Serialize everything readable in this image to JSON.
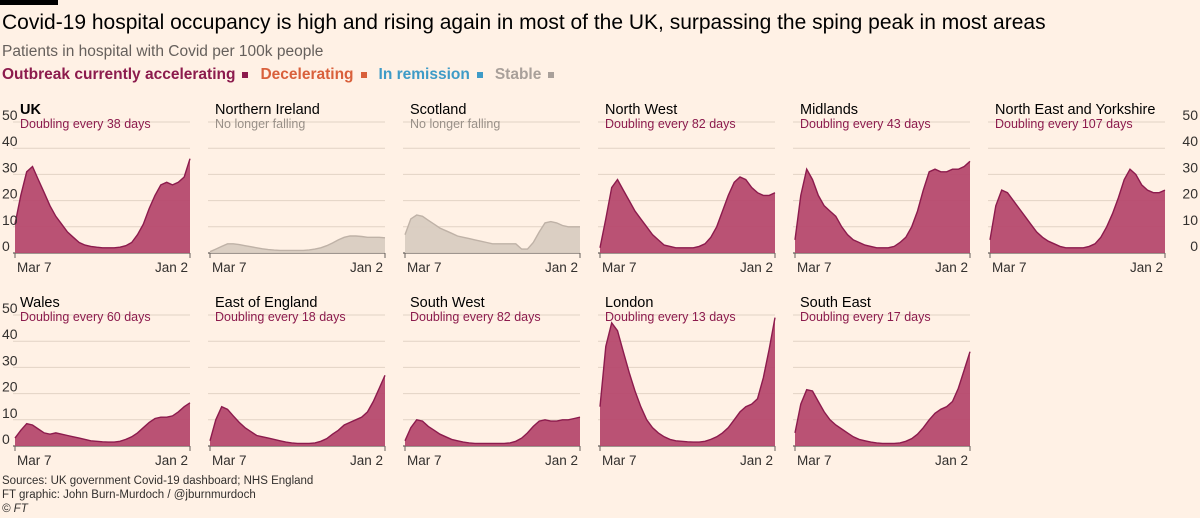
{
  "header": {
    "title": "Covid-19 hospital occupancy is high and rising again in most of the UK, surpassing the sping peak in most areas",
    "subtitle": "Patients in hospital with Covid per 100k people"
  },
  "legend": [
    {
      "label": "Outbreak currently accelerating",
      "color": "#8c1b4d"
    },
    {
      "label": "Decelerating",
      "color": "#d9603b"
    },
    {
      "label": "In remission",
      "color": "#3e9bc7"
    },
    {
      "label": "Stable",
      "color": "#a9a09a"
    }
  ],
  "colors": {
    "accelerating_fill": "#b6496e",
    "accelerating_stroke": "#8c1b4d",
    "stable_fill": "#d9ccc1",
    "stable_stroke": "#bfb2a7",
    "stable_text": "#999088",
    "grid": "#e2d3c5",
    "axis_text": "#33302e"
  },
  "chart_data": {
    "type": "area",
    "x_start": "Mar 7",
    "x_end": "Jan 2",
    "x_tick_labels": [
      "Mar 7",
      "Jan 2"
    ],
    "y_ticks": [
      0,
      10,
      20,
      30,
      40,
      50
    ],
    "ylim": [
      0,
      50
    ],
    "grid": true,
    "panels": [
      {
        "name": "UK",
        "status": "accelerating",
        "note": "Doubling every 38 days",
        "values": [
          11,
          22,
          31,
          33,
          28,
          23,
          18,
          14,
          11,
          8,
          6,
          4,
          3,
          2.5,
          2.2,
          2,
          2,
          2,
          2.2,
          2.8,
          4,
          7,
          11,
          17,
          22,
          26,
          27,
          26,
          27,
          29,
          36
        ]
      },
      {
        "name": "Northern Ireland",
        "status": "stable",
        "note": "No longer falling",
        "values": [
          0.5,
          1.5,
          2.5,
          3.5,
          3.5,
          3.2,
          2.8,
          2.4,
          2,
          1.6,
          1.3,
          1.1,
          1,
          1,
          1,
          1,
          1,
          1.2,
          1.5,
          2,
          2.8,
          3.8,
          5,
          6,
          6.5,
          6.5,
          6.3,
          6,
          6,
          6,
          5.8
        ]
      },
      {
        "name": "Scotland",
        "status": "stable",
        "note": "No longer falling",
        "values": [
          7,
          13,
          14.5,
          14,
          12.5,
          11,
          9.5,
          8.5,
          7.5,
          6.5,
          6,
          5.5,
          5,
          4.5,
          4,
          3.5,
          3.5,
          3.5,
          3.5,
          3.5,
          1.5,
          1.5,
          4,
          8,
          11.5,
          12,
          11.5,
          10.5,
          10,
          10,
          10
        ]
      },
      {
        "name": "North West",
        "status": "accelerating",
        "note": "Doubling every 82 days",
        "values": [
          2,
          13,
          25,
          28,
          24,
          20,
          16,
          13,
          10,
          7,
          5,
          3,
          2.5,
          2,
          2,
          2,
          2,
          2.5,
          3.5,
          6,
          10,
          16,
          22,
          27,
          29,
          28,
          25,
          23,
          22,
          22,
          23
        ]
      },
      {
        "name": "Midlands",
        "status": "accelerating",
        "note": "Doubling every 43 days",
        "values": [
          5,
          22,
          32,
          28,
          22,
          18,
          16,
          14,
          10,
          7,
          5,
          4,
          3,
          2.5,
          2,
          2,
          2,
          2.5,
          4,
          6,
          10,
          16,
          24,
          31,
          32,
          31,
          31,
          32,
          32,
          33,
          35
        ]
      },
      {
        "name": "North East and Yorkshire",
        "status": "accelerating",
        "note": "Doubling every 107 days",
        "values": [
          5,
          18,
          24,
          23,
          20,
          17,
          14,
          11,
          8,
          6,
          4.5,
          3.5,
          2.5,
          2,
          2,
          2,
          2,
          2.5,
          3.5,
          6,
          10,
          15,
          21,
          28,
          32,
          30,
          26,
          24,
          23,
          23,
          24
        ]
      },
      {
        "name": "Wales",
        "status": "accelerating",
        "note": "Doubling every 60 days",
        "values": [
          3,
          6,
          8.5,
          8,
          6.5,
          5,
          4.5,
          5,
          4.5,
          4,
          3.5,
          3,
          2.5,
          2,
          1.8,
          1.6,
          1.5,
          1.5,
          1.8,
          2.5,
          3.5,
          5,
          7,
          9,
          10.5,
          11,
          11,
          11.5,
          13,
          15,
          16.5
        ]
      },
      {
        "name": "East of England",
        "status": "accelerating",
        "note": "Doubling every 18 days",
        "values": [
          2,
          10,
          15,
          14,
          11.5,
          9,
          7,
          5.5,
          4,
          3.5,
          3,
          2.5,
          2,
          1.5,
          1.2,
          1,
          1,
          1,
          1.2,
          1.8,
          2.8,
          4.5,
          6,
          8,
          9,
          10,
          11,
          13,
          17,
          22,
          27
        ]
      },
      {
        "name": "South West",
        "status": "accelerating",
        "note": "Doubling every 82 days",
        "values": [
          2,
          7,
          10,
          9.5,
          7.5,
          6,
          4.5,
          3.5,
          2.5,
          2,
          1.5,
          1.2,
          1,
          1,
          1,
          1,
          1,
          1,
          1.2,
          1.8,
          3,
          5,
          7.5,
          9.5,
          10,
          9.5,
          9.5,
          10,
          10,
          10.5,
          11
        ]
      },
      {
        "name": "London",
        "status": "accelerating",
        "note": "Doubling every 13 days",
        "values": [
          15,
          38,
          47,
          44,
          36,
          28,
          21,
          15,
          10,
          7,
          5,
          3.5,
          2.5,
          2,
          1.8,
          1.6,
          1.5,
          1.5,
          1.8,
          2.5,
          3.5,
          5,
          7,
          10,
          13,
          15,
          16,
          18,
          26,
          37,
          49
        ]
      },
      {
        "name": "South East",
        "status": "accelerating",
        "note": "Doubling every 17 days",
        "values": [
          5,
          16,
          21.5,
          21,
          17,
          13,
          10,
          8,
          6.5,
          5,
          3.5,
          2.5,
          2,
          1.5,
          1.2,
          1,
          1,
          1,
          1.2,
          1.8,
          2.8,
          4.5,
          7,
          10,
          12.5,
          14,
          15,
          17,
          22,
          29,
          36
        ]
      }
    ]
  },
  "footer": {
    "source": "Sources: UK government Covid-19 dashboard; NHS England",
    "credit": "FT graphic: John Burn-Murdoch / @jburnmurdoch",
    "copyright": "© FT"
  }
}
